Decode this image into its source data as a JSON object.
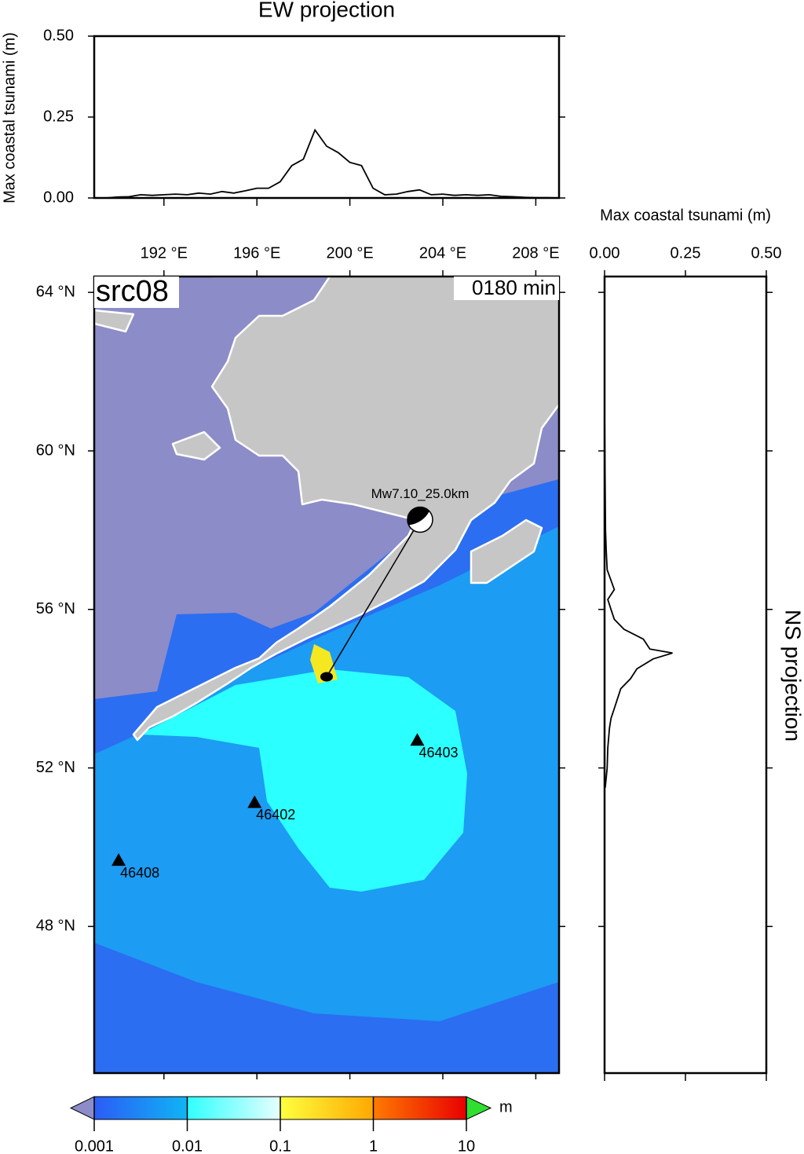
{
  "chart_data": [
    {
      "type": "line",
      "title": "EW projection",
      "y_label": "Max coastal tsunami (m)",
      "color": "#000000",
      "x": [
        189.5,
        190,
        190.5,
        191,
        191.5,
        192,
        192.5,
        193,
        193.5,
        194,
        194.5,
        195,
        195.5,
        196,
        196.5,
        197,
        197.5,
        198,
        198.5,
        199,
        199.5,
        200,
        200.5,
        201,
        201.5,
        202,
        202.5,
        203,
        203.5,
        204,
        204.5,
        205,
        205.5,
        206,
        206.5,
        207,
        207.5,
        208,
        208.5,
        209
      ],
      "values": [
        0,
        0.003,
        0.004,
        0.01,
        0.008,
        0.01,
        0.012,
        0.01,
        0.015,
        0.012,
        0.02,
        0.015,
        0.022,
        0.03,
        0.03,
        0.05,
        0.1,
        0.12,
        0.21,
        0.16,
        0.14,
        0.11,
        0.1,
        0.03,
        0.01,
        0.012,
        0.02,
        0.025,
        0.01,
        0.012,
        0.008,
        0.01,
        0.008,
        0.01,
        0.005,
        0.004,
        0.002,
        0.001,
        0.001,
        0
      ],
      "xlim": [
        189,
        209
      ],
      "ylim": [
        0,
        0.5
      ],
      "xticks": [
        192,
        196,
        200,
        204,
        208
      ],
      "yticks": [
        {
          "value": 0,
          "label": "0.00"
        },
        {
          "value": 0.25,
          "label": "0.25"
        },
        {
          "value": 0.5,
          "label": "0.50"
        }
      ]
    },
    {
      "type": "profile",
      "title": "NS projection",
      "x_label": "Max coastal tsunami (m)",
      "color": "#000000",
      "y": [
        61,
        60,
        59,
        58,
        57.5,
        57,
        56.5,
        56.25,
        56,
        55.75,
        55.5,
        55.25,
        55,
        54.9,
        54.75,
        54.5,
        54.25,
        54,
        53.75,
        53.5,
        53.25,
        53,
        52.5,
        52,
        51.75,
        51.5
      ],
      "values": [
        0,
        0.001,
        0.002,
        0.003,
        0.005,
        0.008,
        0.03,
        0.01,
        0.02,
        0.03,
        0.06,
        0.12,
        0.14,
        0.21,
        0.15,
        0.1,
        0.08,
        0.05,
        0.04,
        0.03,
        0.02,
        0.015,
        0.01,
        0.008,
        0.005,
        0.002
      ],
      "xlim": [
        0,
        0.5
      ],
      "ylim": [
        44.3,
        64.4
      ],
      "xticks": [
        {
          "value": 0,
          "label": "0.00"
        },
        {
          "value": 0.25,
          "label": "0.25"
        },
        {
          "value": 0.5,
          "label": "0.50"
        }
      ],
      "yticks": [
        48,
        52,
        56,
        60,
        64
      ]
    },
    {
      "type": "map",
      "panel_label": "src08",
      "time_label": "0180 min",
      "xlim": [
        189,
        209
      ],
      "ylim": [
        44.3,
        64.4
      ],
      "xticks": [
        {
          "value": 192,
          "label": "192 °E"
        },
        {
          "value": 196,
          "label": "196 °E"
        },
        {
          "value": 200,
          "label": "200 °E"
        },
        {
          "value": 204,
          "label": "204 °E"
        },
        {
          "value": 208,
          "label": "208 °E"
        }
      ],
      "yticks": [
        {
          "value": 48,
          "label": "48 °N"
        },
        {
          "value": 52,
          "label": "52 °N"
        },
        {
          "value": 56,
          "label": "56 °N"
        },
        {
          "value": 60,
          "label": "60 °N"
        },
        {
          "value": 64,
          "label": "64 °N"
        }
      ],
      "stations": [
        {
          "name": "46403",
          "lon": 202.9,
          "lat": 52.7
        },
        {
          "name": "46402",
          "lon": 195.9,
          "lat": 51.13
        },
        {
          "name": "46408",
          "lon": 190.05,
          "lat": 49.67
        }
      ],
      "epicenter": {
        "lon": 199.0,
        "lat": 54.3,
        "label": "Mw7.10_25.0km"
      }
    },
    {
      "type": "colorbar",
      "log_scale": true,
      "xlim": [
        0.001,
        10
      ],
      "xticks": [
        0.001,
        0.01,
        0.1,
        1,
        10
      ],
      "unit_label": "m"
    }
  ]
}
